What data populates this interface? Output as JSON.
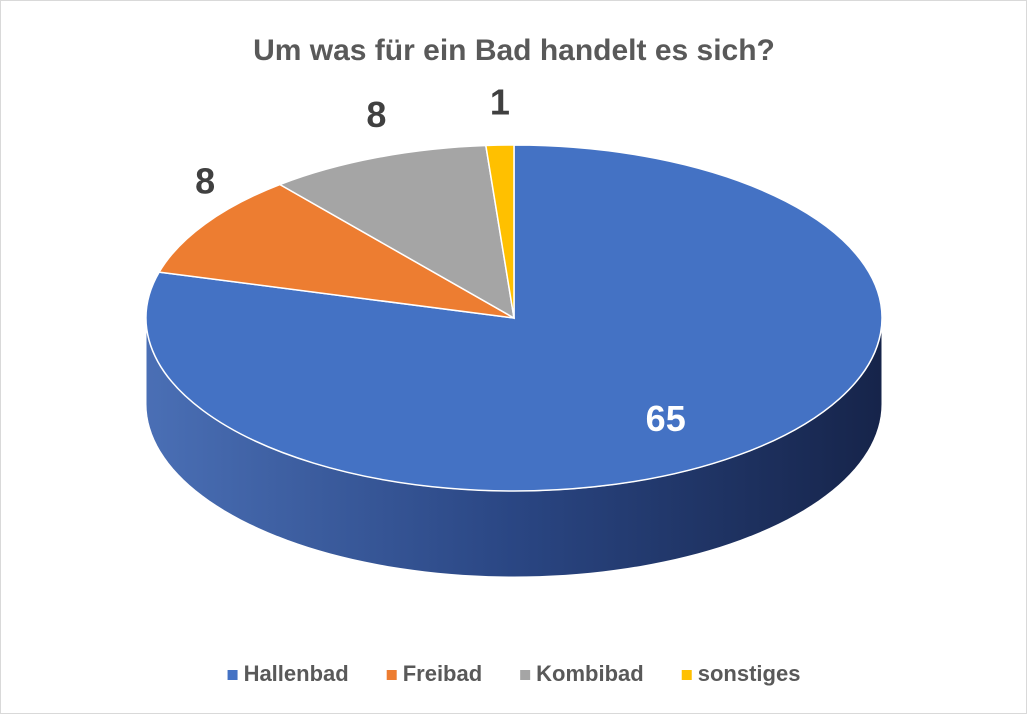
{
  "chart_data": {
    "type": "pie",
    "title": "Um was für ein Bad handelt es sich?",
    "categories": [
      "Hallenbad",
      "Freibad",
      "Kombibad",
      "sonstiges"
    ],
    "values": [
      65,
      8,
      8,
      1
    ],
    "colors": [
      "#4472c4",
      "#ed7d31",
      "#a5a5a5",
      "#ffc000"
    ],
    "legend": "bottom"
  }
}
